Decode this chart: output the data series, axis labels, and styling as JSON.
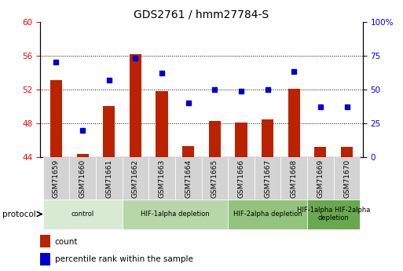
{
  "title": "GDS2761 / hmm27784-S",
  "samples": [
    "GSM71659",
    "GSM71660",
    "GSM71661",
    "GSM71662",
    "GSM71663",
    "GSM71664",
    "GSM71665",
    "GSM71666",
    "GSM71667",
    "GSM71668",
    "GSM71669",
    "GSM71670"
  ],
  "bar_heights": [
    53.1,
    44.4,
    50.0,
    56.2,
    51.8,
    45.3,
    48.3,
    48.1,
    48.5,
    52.1,
    45.2,
    45.2
  ],
  "dot_values_pct": [
    70,
    20,
    57,
    73,
    62,
    40,
    50,
    49,
    50,
    63,
    37,
    37
  ],
  "ylim_left": [
    44,
    60
  ],
  "ylim_right": [
    0,
    100
  ],
  "yticks_left": [
    44,
    48,
    52,
    56,
    60
  ],
  "yticks_right_vals": [
    0,
    25,
    50,
    75,
    100
  ],
  "yticks_right_labels": [
    "0",
    "25",
    "50",
    "75",
    "100%"
  ],
  "bar_color": "#bb2200",
  "dot_color": "#0000cc",
  "groups": [
    {
      "label": "control",
      "start": 0,
      "end": 2,
      "color": "#d9ead3"
    },
    {
      "label": "HIF-1alpha depletion",
      "start": 3,
      "end": 6,
      "color": "#b7d7a8"
    },
    {
      "label": "HIF-2alpha depletion",
      "start": 7,
      "end": 9,
      "color": "#93c47d"
    },
    {
      "label": "HIF-1alpha HIF-2alpha\ndepletion",
      "start": 10,
      "end": 11,
      "color": "#6aa84f"
    }
  ],
  "protocol_label": "protocol",
  "bar_width": 0.45,
  "title_fontsize": 10,
  "tick_fontsize": 7.5,
  "xtick_fontsize": 6.5,
  "legend_fontsize": 7.5
}
